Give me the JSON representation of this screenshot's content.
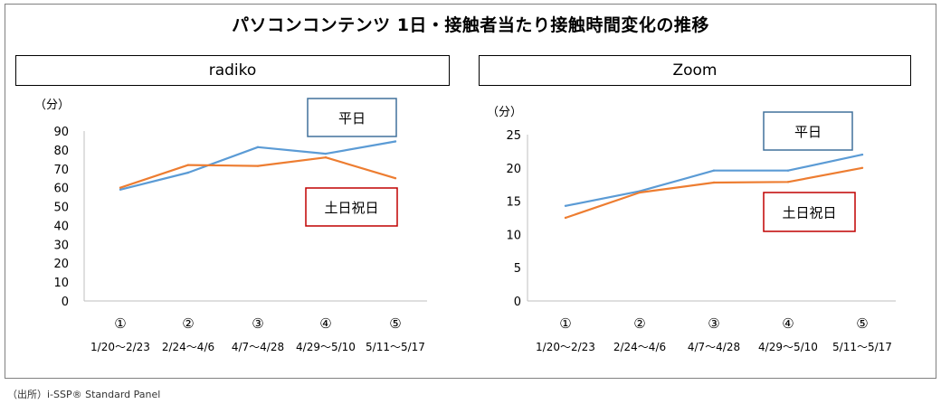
{
  "title": "パソコンコンテンツ 1日・接触者当たり接触時間変化の推移",
  "source_note": "（出所）i-SSP® Standard Panel",
  "colors": {
    "weekday": "#5B9BD5",
    "holiday": "#ED7D31",
    "weekday_box": "#41719C",
    "holiday_box": "#C00000"
  },
  "chart_data": [
    {
      "type": "line",
      "title": "radiko",
      "unit_label": "（分）",
      "categories": [
        "①",
        "②",
        "③",
        "④",
        "⑤"
      ],
      "period_labels": [
        "1/20～2/23",
        "2/24～4/6",
        "4/7～4/28",
        "4/29～5/10",
        "5/11～5/17"
      ],
      "y_ticks": [
        "0",
        "10",
        "20",
        "30",
        "40",
        "50",
        "60",
        "70",
        "80",
        "90"
      ],
      "ylim": [
        0,
        90
      ],
      "grid": false,
      "series": [
        {
          "name": "平日",
          "values": [
            59,
            68,
            81.5,
            78,
            84.5
          ]
        },
        {
          "name": "土日祝日",
          "values": [
            60,
            72,
            71.5,
            76,
            65
          ]
        }
      ]
    },
    {
      "type": "line",
      "title": "Zoom",
      "unit_label": "（分）",
      "categories": [
        "①",
        "②",
        "③",
        "④",
        "⑤"
      ],
      "period_labels": [
        "1/20～2/23",
        "2/24～4/6",
        "4/7～4/28",
        "4/29～5/10",
        "5/11～5/17"
      ],
      "y_ticks": [
        "0",
        "5",
        "10",
        "15",
        "20",
        "25"
      ],
      "ylim": [
        0,
        25
      ],
      "grid": false,
      "series": [
        {
          "name": "平日",
          "values": [
            14.3,
            16.5,
            19.6,
            19.6,
            22
          ]
        },
        {
          "name": "土日祝日",
          "values": [
            12.5,
            16.3,
            17.8,
            17.9,
            20
          ]
        }
      ]
    }
  ]
}
